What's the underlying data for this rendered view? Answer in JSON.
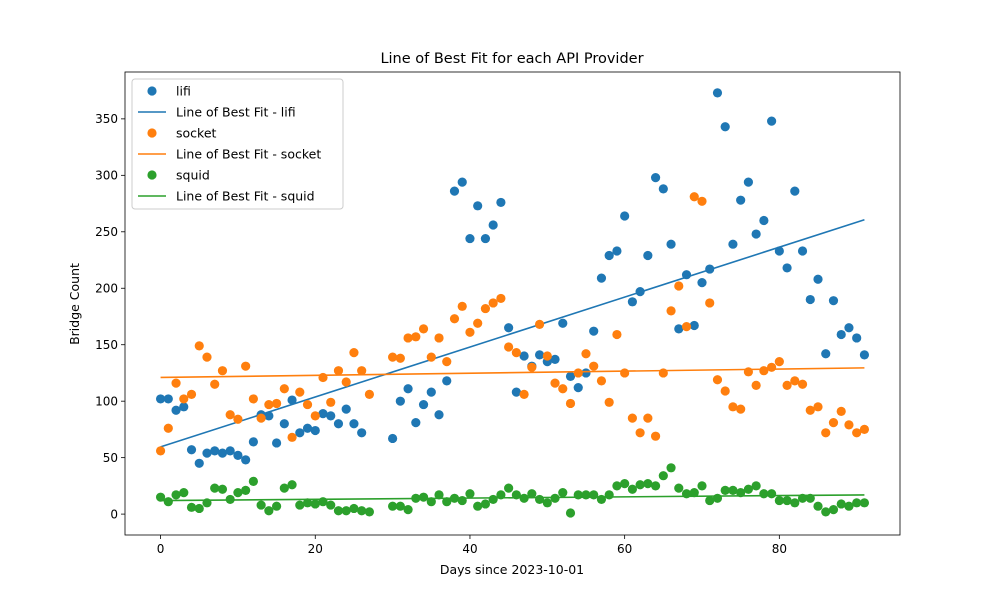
{
  "chart_data": {
    "type": "scatter",
    "title": "Line of Best Fit for each API Provider",
    "xlabel": "Days since 2023-10-01",
    "ylabel": "Bridge Count",
    "xlim": [
      -4.6,
      95.6
    ],
    "ylim": [
      -18.5,
      391.5
    ],
    "xticks": [
      0,
      20,
      40,
      60,
      80
    ],
    "yticks": [
      0,
      50,
      100,
      150,
      200,
      250,
      300,
      350
    ],
    "grid": false,
    "legend_position": "top-left",
    "x": [
      0,
      1,
      2,
      3,
      4,
      5,
      6,
      7,
      8,
      9,
      10,
      11,
      12,
      13,
      14,
      15,
      16,
      17,
      18,
      19,
      20,
      21,
      22,
      23,
      24,
      25,
      26,
      27,
      30,
      31,
      32,
      33,
      34,
      35,
      36,
      37,
      38,
      39,
      40,
      41,
      42,
      43,
      44,
      45,
      46,
      47,
      48,
      49,
      50,
      51,
      52,
      53,
      54,
      55,
      56,
      57,
      58,
      59,
      60,
      61,
      62,
      63,
      64,
      65,
      66,
      67,
      68,
      69,
      70,
      71,
      72,
      73,
      74,
      75,
      76,
      77,
      78,
      79,
      80,
      81,
      82,
      83,
      84,
      85,
      86,
      87,
      88,
      89,
      90,
      91
    ],
    "series": [
      {
        "name": "lifi",
        "color": "#1f77b4",
        "values": [
          102,
          102,
          92,
          95,
          57,
          45,
          54,
          56,
          54,
          56,
          52,
          48,
          64,
          88,
          87,
          63,
          80,
          101,
          72,
          76,
          74,
          89,
          87,
          80,
          93,
          80,
          72,
          null,
          67,
          100,
          111,
          81,
          97,
          108,
          88,
          118,
          286,
          294,
          244,
          273,
          244,
          256,
          276,
          165,
          108,
          140,
          131,
          141,
          135,
          137,
          169,
          122,
          112,
          125,
          162,
          209,
          229,
          233,
          264,
          188,
          197,
          229,
          298,
          288,
          239,
          164,
          212,
          167,
          205,
          217,
          373,
          343,
          239,
          278,
          294,
          248,
          260,
          348,
          233,
          218,
          286,
          233,
          190,
          208,
          142,
          189,
          159,
          165,
          156,
          141
        ],
        "fit": [
          59.5,
          260.7
        ],
        "fit_label": "Line of Best Fit - lifi"
      },
      {
        "name": "socket",
        "color": "#ff7f0e",
        "values": [
          56,
          76,
          116,
          102,
          106,
          149,
          139,
          115,
          127,
          88,
          84,
          131,
          102,
          85,
          97,
          98,
          111,
          68,
          108,
          97,
          87,
          121,
          99,
          127,
          117,
          143,
          127,
          106,
          139,
          138,
          156,
          157,
          164,
          139,
          156,
          135,
          173,
          184,
          161,
          169,
          182,
          187,
          191,
          148,
          143,
          106,
          130,
          168,
          140,
          116,
          111,
          98,
          125,
          142,
          131,
          118,
          99,
          159,
          125,
          85,
          72,
          85,
          69,
          125,
          180,
          202,
          166,
          281,
          277,
          187,
          119,
          109,
          95,
          93,
          126,
          114,
          127,
          130,
          135,
          114,
          118,
          115,
          92,
          95,
          72,
          81,
          91,
          79,
          72,
          75
        ],
        "fit": [
          121.0,
          129.5
        ],
        "fit_label": "Line of Best Fit - socket"
      },
      {
        "name": "squid",
        "color": "#2ca02c",
        "values": [
          15,
          11,
          17,
          19,
          6,
          5,
          10,
          23,
          22,
          13,
          19,
          21,
          29,
          8,
          3,
          7,
          23,
          26,
          8,
          10,
          9,
          11,
          8,
          3,
          3,
          5,
          3,
          2,
          7,
          7,
          4,
          14,
          15,
          11,
          17,
          11,
          14,
          12,
          18,
          7,
          9,
          13,
          17,
          23,
          17,
          14,
          18,
          13,
          10,
          14,
          19,
          1,
          17,
          17,
          17,
          13,
          17,
          25,
          27,
          22,
          26,
          27,
          25,
          34,
          41,
          23,
          18,
          19,
          25,
          12,
          14,
          21,
          21,
          19,
          22,
          25,
          18,
          18,
          12,
          12,
          10,
          14,
          14,
          7,
          2,
          4,
          9,
          7,
          10,
          10
        ],
        "fit": [
          12.0,
          17.0
        ],
        "fit_label": "Line of Best Fit - squid"
      }
    ]
  }
}
